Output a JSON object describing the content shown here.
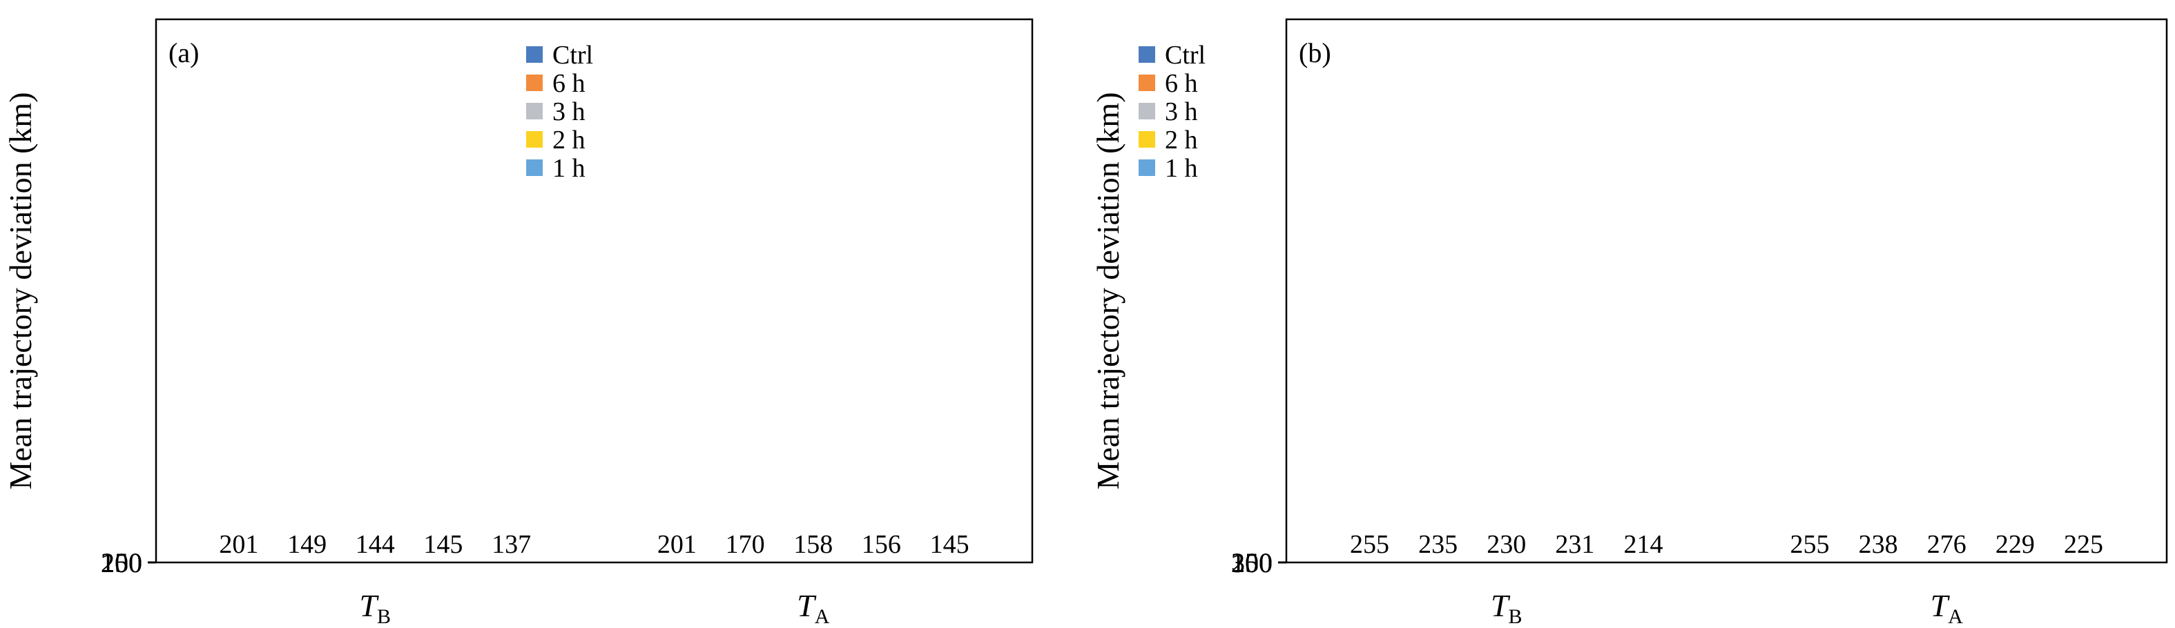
{
  "chart_data": [
    {
      "type": "bar",
      "panel_label": "(a)",
      "ylabel": "Mean trajectory deviation (km)",
      "ylim": [
        0,
        250
      ],
      "yticks": [
        0,
        50,
        100,
        150,
        200,
        250
      ],
      "categories": [
        {
          "main": "T",
          "sub": "B"
        },
        {
          "main": "T",
          "sub": "A"
        }
      ],
      "legend_position": "top-center",
      "series": [
        {
          "name": "Ctrl",
          "color": "#4a7bbf",
          "values": [
            201,
            201
          ]
        },
        {
          "name": "6 h",
          "color": "#f28c3c",
          "values": [
            149,
            170
          ]
        },
        {
          "name": "3 h",
          "color": "#bdc0c7",
          "values": [
            144,
            158
          ]
        },
        {
          "name": "2 h",
          "color": "#fcd222",
          "values": [
            145,
            156
          ]
        },
        {
          "name": "1 h",
          "color": "#64a6dc",
          "values": [
            137,
            145
          ]
        }
      ]
    },
    {
      "type": "bar",
      "panel_label": "(b)",
      "ylabel": "Mean trajectory deviation (km)",
      "ylim": [
        0,
        300
      ],
      "yticks": [
        0,
        50,
        100,
        150,
        200,
        250,
        300
      ],
      "categories": [
        {
          "main": "T",
          "sub": "B"
        },
        {
          "main": "T",
          "sub": "A"
        }
      ],
      "legend_position": "top-center",
      "series": [
        {
          "name": "Ctrl",
          "color": "#4a7bbf",
          "values": [
            255,
            255
          ]
        },
        {
          "name": "6 h",
          "color": "#f28c3c",
          "values": [
            235,
            238
          ]
        },
        {
          "name": "3 h",
          "color": "#bdc0c7",
          "values": [
            230,
            276
          ]
        },
        {
          "name": "2 h",
          "color": "#fcd222",
          "values": [
            231,
            229
          ]
        },
        {
          "name": "1 h",
          "color": "#64a6dc",
          "values": [
            214,
            225
          ]
        }
      ]
    }
  ]
}
